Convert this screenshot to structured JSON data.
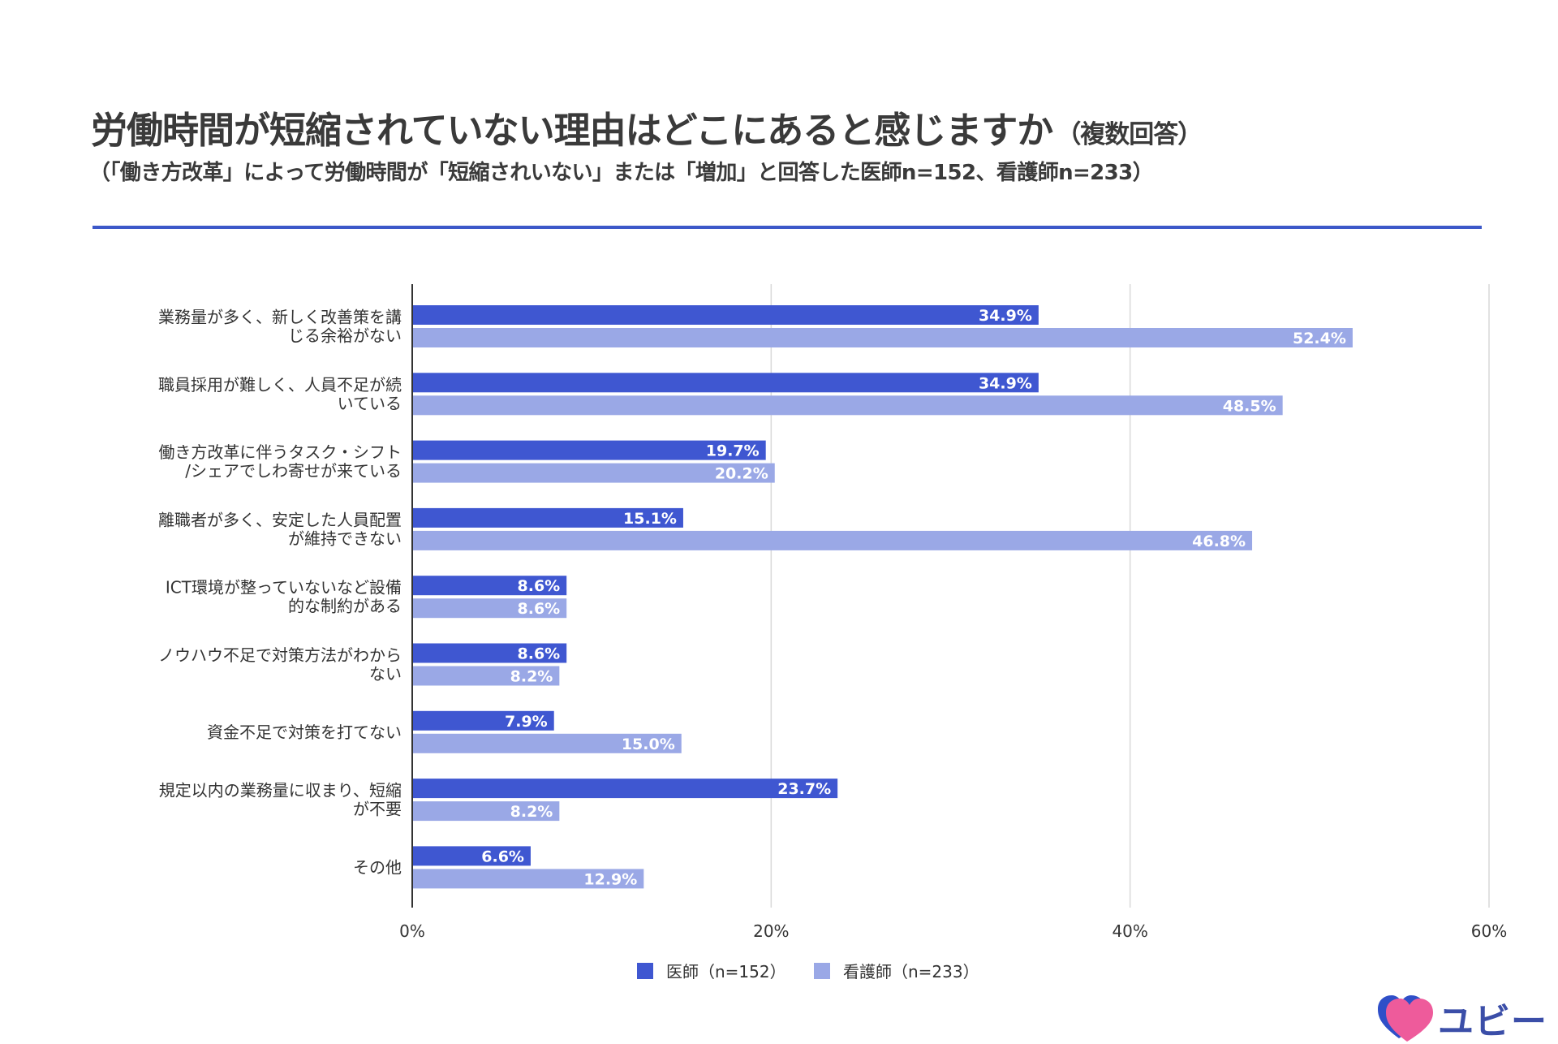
{
  "header": {
    "title": "労働時間が短縮されていない理由はどこにあると感じますか",
    "title_suffix": "（複数回答）",
    "subtitle": "（「働き方改革」によって労働時間が「短縮されいない」または「増加」と回答した医師n=152、看護師n=233）"
  },
  "brand": {
    "name": "ユビー",
    "icon": "heart-logo-icon"
  },
  "colors": {
    "series1": "#3f57d1",
    "series2": "#9aa8e6",
    "grid": "#d9d9d9",
    "axis": "#333333",
    "rule": "#3c58c9"
  },
  "chart_data": {
    "type": "bar",
    "orientation": "horizontal",
    "categories": [
      [
        "業務量が多く、新しく改善策を講",
        "じる余裕がない"
      ],
      [
        "職員採用が難しく、人員不足が続",
        "いている"
      ],
      [
        "働き方改革に伴うタスク・シフト",
        "/シェアでしわ寄せが来ている"
      ],
      [
        "離職者が多く、安定した人員配置",
        "が維持できない"
      ],
      [
        "ICT環境が整っていないなど設備",
        "的な制約がある"
      ],
      [
        "ノウハウ不足で対策方法がわから",
        "ない"
      ],
      [
        "資金不足で対策を打てない"
      ],
      [
        "規定以内の業務量に収まり、短縮",
        "が不要"
      ],
      [
        "その他"
      ]
    ],
    "series": [
      {
        "name": "医師（n=152）",
        "color": "#3f57d1",
        "values": [
          34.9,
          34.9,
          19.7,
          15.1,
          8.6,
          8.6,
          7.9,
          23.7,
          6.6
        ],
        "labels": [
          "34.9%",
          "34.9%",
          "19.7%",
          "15.1%",
          "8.6%",
          "8.6%",
          "7.9%",
          "23.7%",
          "6.6%"
        ]
      },
      {
        "name": "看護師（n=233）",
        "color": "#9aa8e6",
        "values": [
          52.4,
          48.5,
          20.2,
          46.8,
          8.6,
          8.2,
          15.0,
          8.2,
          12.9
        ],
        "labels": [
          "52.4%",
          "48.5%",
          "20.2%",
          "46.8%",
          "8.6%",
          "8.2%",
          "15.0%",
          "8.2%",
          "12.9%"
        ]
      }
    ],
    "xlim": [
      0,
      60
    ],
    "xticks": [
      0,
      20,
      40,
      60
    ],
    "xtick_labels": [
      "0%",
      "20%",
      "40%",
      "60%"
    ],
    "grid": true,
    "legend_position": "bottom-center"
  }
}
